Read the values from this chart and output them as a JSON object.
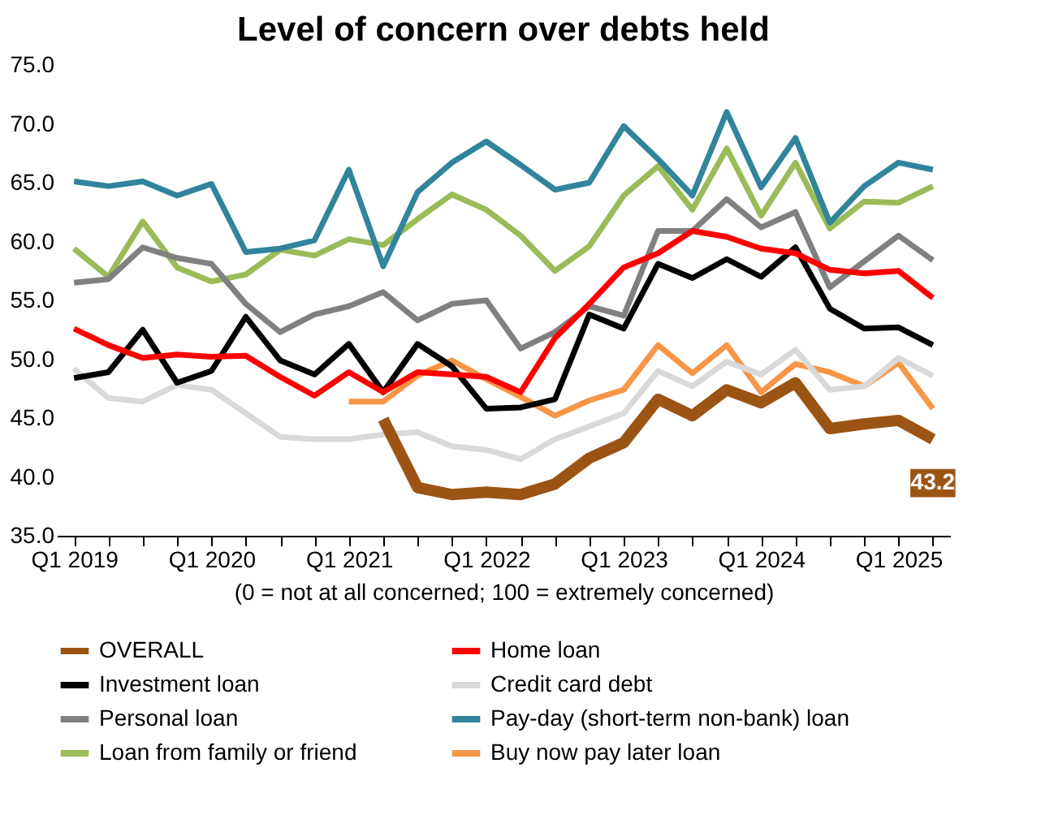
{
  "chart_data": {
    "type": "line",
    "title": "Level of concern over debts held",
    "xlabel": "(0 = not at all concerned; 100 = extremely concerned)",
    "categories": [
      "Q1 2019",
      null,
      null,
      null,
      "Q1 2020",
      null,
      null,
      null,
      "Q1 2021",
      null,
      null,
      null,
      "Q1 2022",
      null,
      null,
      null,
      "Q1 2023",
      null,
      null,
      null,
      "Q1 2024",
      null,
      null,
      null,
      "Q1 2025",
      null
    ],
    "ylim": [
      35,
      75
    ],
    "yticks": [
      {
        "value": 35,
        "label": "35.0"
      },
      {
        "value": 40,
        "label": "40.0"
      },
      {
        "value": 45,
        "label": "45.0"
      },
      {
        "value": 50,
        "label": "50.0"
      },
      {
        "value": 55,
        "label": "55.0"
      },
      {
        "value": 60,
        "label": "60.0"
      },
      {
        "value": 65,
        "label": "65.0"
      },
      {
        "value": 70,
        "label": "70.0"
      },
      {
        "value": 75,
        "label": "75.0"
      }
    ],
    "grid": false,
    "legend": "bottom",
    "marker": "none",
    "line_style": "solid",
    "series": [
      {
        "name": "OVERALL",
        "color": "#9c5414",
        "values": [
          null,
          null,
          null,
          null,
          null,
          null,
          null,
          null,
          null,
          44.9,
          39.1,
          38.5,
          38.7,
          38.5,
          39.4,
          41.6,
          42.9,
          46.6,
          45.2,
          47.4,
          46.3,
          48.0,
          44.1,
          44.5,
          44.8,
          43.2
        ],
        "value_labels": [
          null,
          null,
          null,
          null,
          null,
          null,
          null,
          null,
          null,
          null,
          null,
          null,
          null,
          null,
          null,
          null,
          null,
          null,
          null,
          null,
          null,
          null,
          null,
          null,
          null,
          "43.2"
        ]
      },
      {
        "name": "Home loan",
        "color": "#ff0000",
        "values": [
          52.6,
          51.2,
          50.1,
          50.4,
          50.2,
          50.3,
          48.5,
          46.9,
          48.9,
          47.2,
          48.9,
          48.7,
          48.5,
          47.2,
          51.8,
          54.7,
          57.8,
          59.0,
          60.9,
          60.4,
          59.4,
          59.0,
          57.6,
          57.3,
          57.5,
          55.2
        ]
      },
      {
        "name": "Investment loan",
        "color": "#000000",
        "values": [
          48.4,
          48.9,
          52.5,
          48.0,
          49.0,
          53.6,
          49.9,
          48.7,
          51.3,
          47.2,
          51.3,
          49.4,
          45.8,
          45.9,
          46.6,
          53.8,
          52.6,
          58.1,
          56.9,
          58.5,
          57.0,
          59.5,
          54.3,
          52.6,
          52.7,
          51.2
        ]
      },
      {
        "name": "Credit card debt",
        "color": "#d9d9d9",
        "values": [
          49.2,
          46.7,
          46.4,
          47.8,
          47.4,
          45.4,
          43.4,
          43.2,
          43.2,
          43.6,
          43.8,
          42.6,
          42.3,
          41.5,
          43.2,
          44.3,
          45.4,
          49.0,
          47.7,
          49.8,
          48.7,
          50.8,
          47.4,
          47.7,
          50.1,
          48.6
        ]
      },
      {
        "name": "Personal loan",
        "color": "#808080",
        "values": [
          56.5,
          56.8,
          59.5,
          58.6,
          58.1,
          54.7,
          52.3,
          53.8,
          54.5,
          55.7,
          53.3,
          54.7,
          55.0,
          50.9,
          52.3,
          54.5,
          53.7,
          60.9,
          60.9,
          63.6,
          61.2,
          62.5,
          56.1,
          58.3,
          60.5,
          58.4
        ]
      },
      {
        "name": "Pay-day (short-term non-bank) loan",
        "color": "#31849b",
        "values": [
          65.1,
          64.7,
          65.1,
          63.9,
          64.9,
          59.1,
          59.4,
          60.1,
          66.1,
          57.9,
          64.2,
          66.7,
          68.5,
          66.5,
          64.4,
          65.0,
          69.8,
          67.0,
          63.9,
          71.0,
          64.6,
          68.8,
          61.6,
          64.7,
          66.7,
          66.1
        ]
      },
      {
        "name": "Loan from family or friend",
        "color": "#9bbb59",
        "values": [
          59.4,
          57.0,
          61.7,
          57.8,
          56.6,
          57.2,
          59.3,
          58.8,
          60.2,
          59.7,
          61.9,
          64.0,
          62.7,
          60.5,
          57.5,
          59.6,
          63.9,
          66.4,
          62.7,
          67.9,
          62.2,
          66.7,
          61.1,
          63.4,
          63.3,
          64.7
        ]
      },
      {
        "name": "Buy now pay later loan",
        "color": "#f79646",
        "values": [
          null,
          null,
          null,
          null,
          null,
          null,
          null,
          null,
          46.4,
          46.4,
          48.6,
          49.9,
          48.3,
          46.8,
          45.2,
          46.5,
          47.4,
          51.2,
          48.8,
          51.2,
          47.2,
          49.6,
          48.9,
          47.7,
          49.7,
          45.8
        ]
      }
    ]
  }
}
